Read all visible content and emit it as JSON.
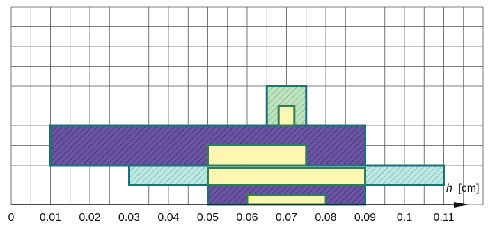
{
  "chart_data": {
    "type": "bar",
    "xlabel_var": "h",
    "xlabel_unit": "[cm]",
    "xlim": [
      0,
      0.11
    ],
    "x_ticks": [
      "0",
      "0.01",
      "0.02",
      "0.03",
      "0.04",
      "0.05",
      "0.06",
      "0.07",
      "0.08",
      "0.09",
      "0.1",
      "0.11"
    ],
    "grid": true,
    "bars": [
      {
        "x": [
          0.05,
          0.09
        ],
        "level": [
          0,
          1
        ],
        "color": "#5b3f8f"
      },
      {
        "x": [
          0.06,
          0.08
        ],
        "level": [
          0,
          0.5
        ],
        "color": "#fff6b0"
      },
      {
        "x": [
          0.03,
          0.11
        ],
        "level": [
          1,
          2
        ],
        "color": "#8fd6cf"
      },
      {
        "x": [
          0.05,
          0.09
        ],
        "level": [
          1,
          1.85
        ],
        "color": "#fff6b0"
      },
      {
        "x": [
          0.01,
          0.09
        ],
        "level": [
          2,
          4
        ],
        "color": "#5b3f8f"
      },
      {
        "x": [
          0.05,
          0.075
        ],
        "level": [
          2,
          3
        ],
        "color": "#fff6b0"
      },
      {
        "x": [
          0.065,
          0.075
        ],
        "level": [
          4,
          6
        ],
        "color": "#8fc98f"
      },
      {
        "x": [
          0.068,
          0.072
        ],
        "level": [
          4,
          5
        ],
        "color": "#fff6b0"
      }
    ]
  }
}
